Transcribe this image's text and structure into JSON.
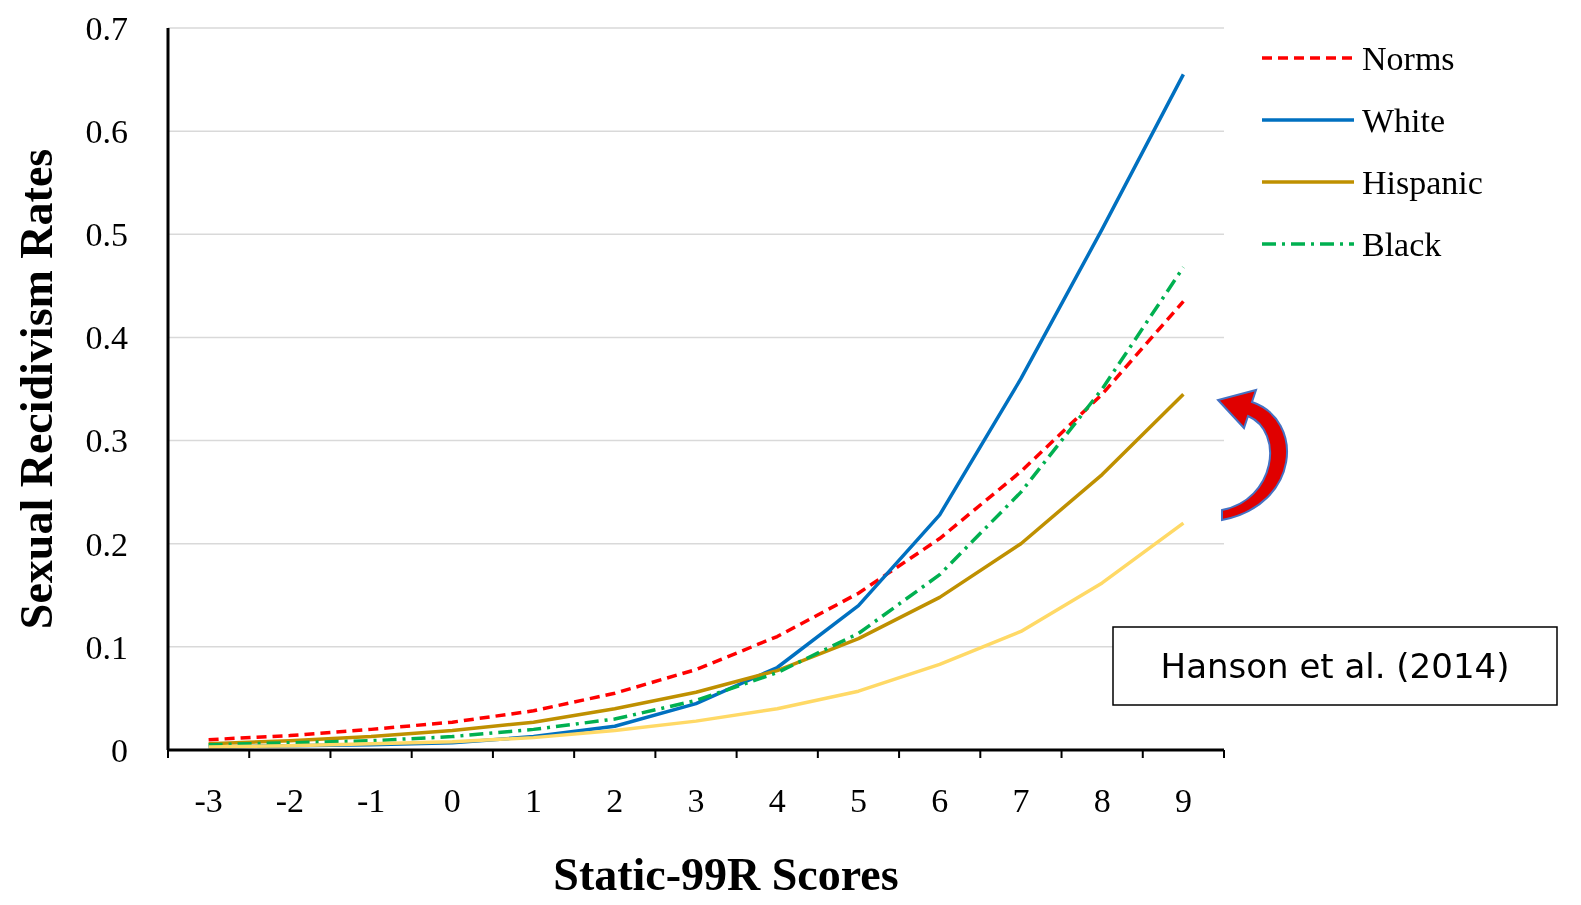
{
  "chart_data": {
    "type": "line",
    "xlabel": "Static-99R Scores",
    "ylabel": "Sexual Recidivism Rates",
    "categories": [
      "-3",
      "-2",
      "-1",
      "0",
      "1",
      "2",
      "3",
      "4",
      "5",
      "6",
      "7",
      "8",
      "9"
    ],
    "series": [
      {
        "name": "Norms",
        "color": "#ff0000",
        "line_style": "dashed",
        "values": [
          0.01,
          0.014,
          0.02,
          0.027,
          0.038,
          0.055,
          0.078,
          0.11,
          0.152,
          0.205,
          0.27,
          0.345,
          0.435
        ]
      },
      {
        "name": "White",
        "color": "#0070c0",
        "line_style": "solid",
        "values": [
          0.003,
          0.004,
          0.005,
          0.007,
          0.013,
          0.023,
          0.045,
          0.08,
          0.14,
          0.228,
          0.36,
          0.505,
          0.655
        ]
      },
      {
        "name": "Hispanic",
        "color": "#bf9000",
        "line_style": "solid",
        "values": [
          0.006,
          0.009,
          0.013,
          0.019,
          0.027,
          0.04,
          0.056,
          0.077,
          0.108,
          0.148,
          0.2,
          0.267,
          0.345
        ]
      },
      {
        "name": "Black",
        "color": "#00b050",
        "line_style": "dashdot",
        "values": [
          0.005,
          0.007,
          0.009,
          0.013,
          0.02,
          0.03,
          0.048,
          0.075,
          0.113,
          0.17,
          0.25,
          0.35,
          0.468
        ]
      },
      {
        "color": "#ffd966",
        "line_style": "solid",
        "values": [
          0.003,
          0.004,
          0.006,
          0.008,
          0.012,
          0.019,
          0.028,
          0.04,
          0.057,
          0.083,
          0.115,
          0.162,
          0.22
        ]
      }
    ],
    "ylim": [
      0,
      0.7
    ],
    "yticks": [
      0,
      0.1,
      0.2,
      0.3,
      0.4,
      0.5,
      0.6,
      0.7
    ],
    "grid": "y",
    "legend": "top right",
    "annotations": [
      "Hanson et al. (2014)"
    ]
  }
}
